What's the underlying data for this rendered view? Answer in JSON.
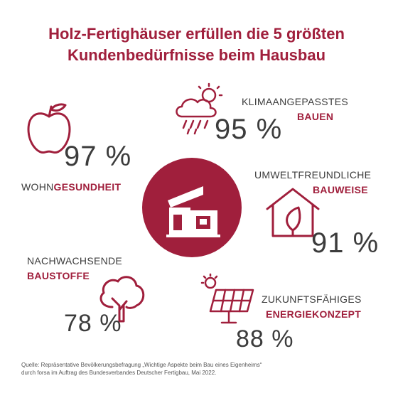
{
  "title": {
    "line1": "Holz-Fertighäuser erfüllen die 5 größten",
    "line2": "Kundenbedürfnisse beim Hausbau"
  },
  "colors": {
    "accent": "#a01f3c",
    "text": "#3c3c3c"
  },
  "items": [
    {
      "label_plain": "WOHN",
      "label_accent": "GESUNDHEIT",
      "value": "97 %",
      "icon": "apple-icon"
    },
    {
      "label_plain": "KLIMAANGEPASSTES",
      "label_accent": "BAUEN",
      "value": "95 %",
      "icon": "weather-cloud-icon"
    },
    {
      "label_plain": "UMWELTFREUNDLICHE",
      "label_accent": "BAUWEISE",
      "value": "91 %",
      "icon": "eco-house-icon"
    },
    {
      "label_plain": "ZUKUNFTSFÄHIGES",
      "label_accent": "ENERGIEKONZEPT",
      "value": "88 %",
      "icon": "solar-panel-icon"
    },
    {
      "label_plain": "NACHWACHSENDE",
      "label_accent": "BAUSTOFFE",
      "value": "78 %",
      "icon": "tree-icon"
    }
  ],
  "center_icon": "prefab-house-icon",
  "source": {
    "line1": "Quelle: Repräsentative Bevölkerungsbefragung „Wichtige Aspekte beim Bau eines Eigenheims“",
    "line2": "durch forsa im Auftrag des Bundesverbandes Deutscher Fertigbau, Mai 2022."
  }
}
